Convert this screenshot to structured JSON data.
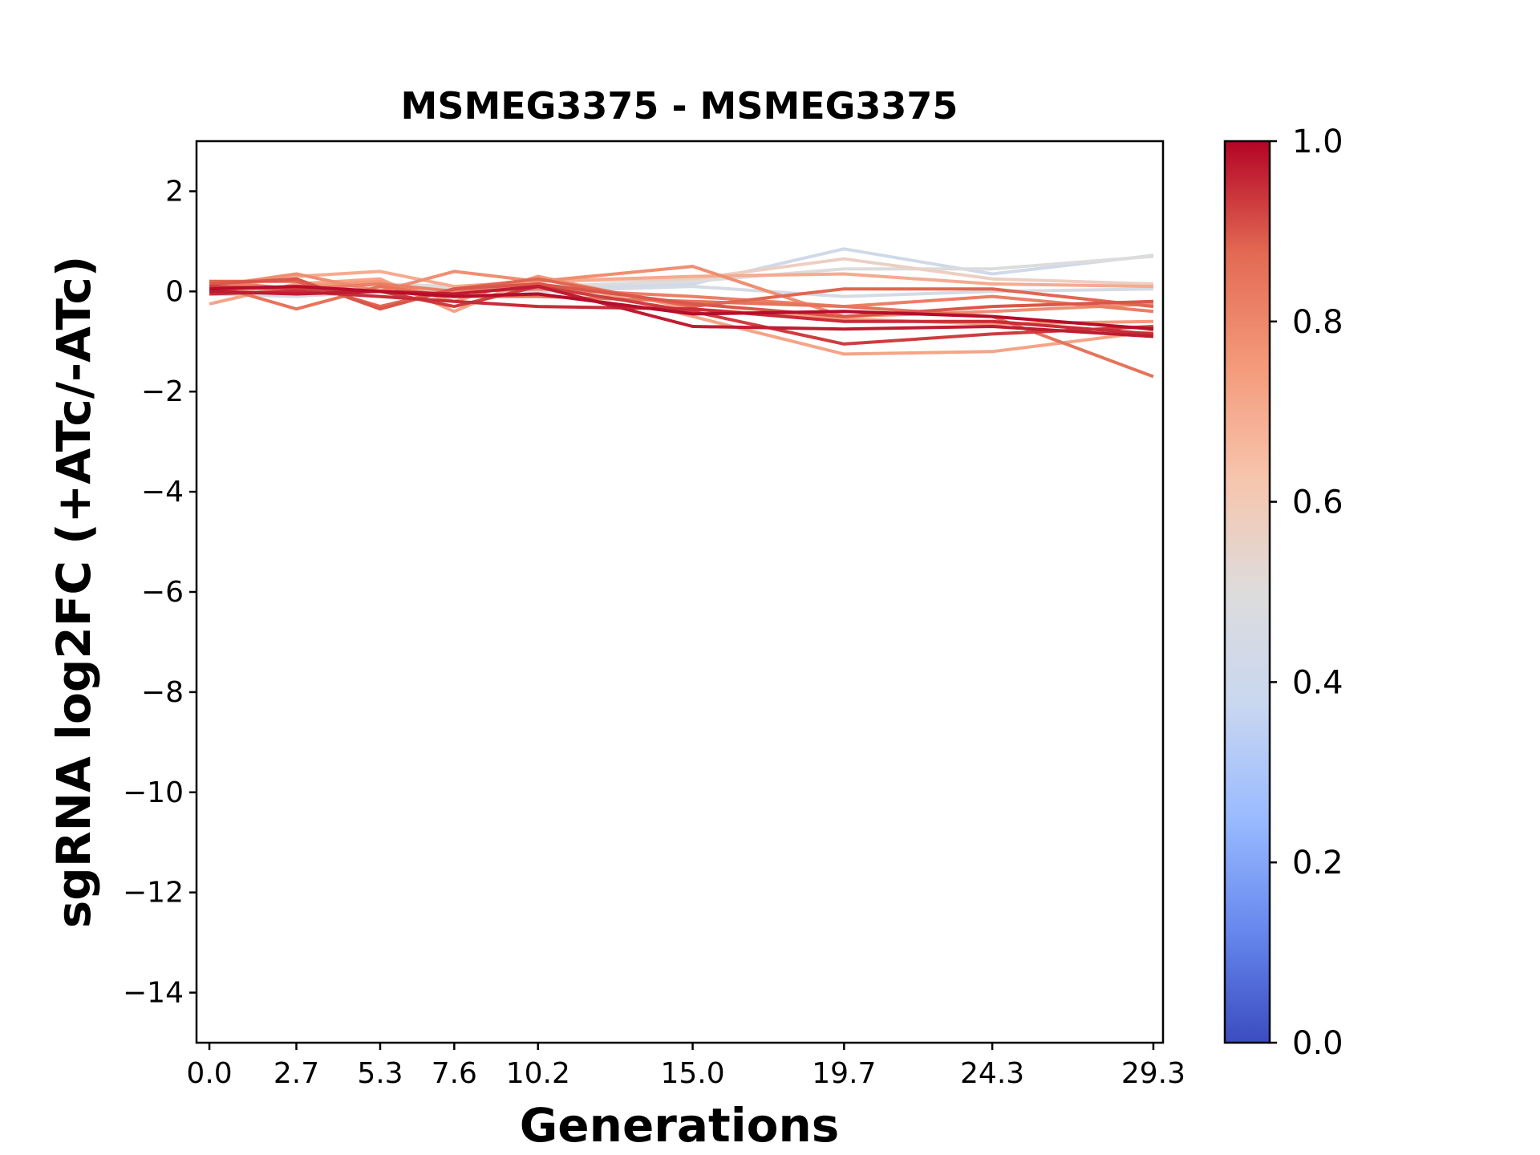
{
  "chart_data": {
    "type": "line",
    "title": "MSMEG3375 - MSMEG3375",
    "xlabel": "Generations",
    "ylabel": "sgRNA log2FC (+ATc/-ATc)",
    "x": [
      0.0,
      2.7,
      5.3,
      7.6,
      10.2,
      15.0,
      19.7,
      24.3,
      29.3
    ],
    "x_tick_labels": [
      "0.0",
      "2.7",
      "5.3",
      "7.6",
      "10.2",
      "15.0",
      "19.7",
      "24.3",
      "29.3"
    ],
    "xlim": [
      -0.4,
      29.6
    ],
    "ylim": [
      -15,
      3
    ],
    "y_ticks": [
      2,
      0,
      -2,
      -4,
      -6,
      -8,
      -10,
      -12,
      -14
    ],
    "y_tick_labels": [
      "2",
      "0",
      "−2",
      "−4",
      "−6",
      "−8",
      "−10",
      "−12",
      "−14"
    ],
    "colorbar": {
      "range": [
        0.0,
        1.0
      ],
      "ticks": [
        0.0,
        0.2,
        0.4,
        0.6,
        0.8,
        1.0
      ],
      "tick_labels": [
        "0.0",
        "0.2",
        "0.4",
        "0.6",
        "0.8",
        "1.0"
      ],
      "colormap": "coolwarm",
      "stops": [
        "#3b4cc0",
        "#6788ee",
        "#9abbff",
        "#c9d7f0",
        "#dddcdc",
        "#f7c5ad",
        "#f49a7b",
        "#e36a53",
        "#b40426"
      ]
    },
    "series": [
      {
        "c": 0.42,
        "values": [
          0.05,
          0.0,
          0.1,
          0.05,
          0.05,
          0.15,
          0.85,
          0.35,
          0.72
        ]
      },
      {
        "c": 0.5,
        "values": [
          0.1,
          0.05,
          0.15,
          0.1,
          0.1,
          0.2,
          0.45,
          0.45,
          0.7
        ]
      },
      {
        "c": 0.57,
        "values": [
          0.0,
          0.1,
          0.05,
          0.0,
          0.2,
          0.25,
          0.65,
          0.25,
          0.15
        ]
      },
      {
        "c": 0.45,
        "values": [
          -0.05,
          -0.1,
          0.0,
          0.05,
          0.0,
          0.1,
          -0.1,
          0.0,
          0.05
        ]
      },
      {
        "c": 0.7,
        "values": [
          0.05,
          0.3,
          0.4,
          0.1,
          0.2,
          0.3,
          0.35,
          0.15,
          0.1
        ]
      },
      {
        "c": 0.78,
        "values": [
          0.1,
          0.35,
          0.0,
          0.4,
          0.2,
          0.5,
          -0.5,
          -0.4,
          -0.25
        ]
      },
      {
        "c": 0.72,
        "values": [
          -0.25,
          0.15,
          0.25,
          -0.4,
          0.3,
          -0.5,
          -1.25,
          -1.2,
          -0.8
        ]
      },
      {
        "c": 0.85,
        "values": [
          0.15,
          -0.35,
          0.1,
          -0.1,
          -0.1,
          -0.2,
          -0.3,
          -0.5,
          -1.7
        ]
      },
      {
        "c": 0.88,
        "values": [
          0.2,
          0.2,
          -0.3,
          0.05,
          0.25,
          -0.3,
          0.05,
          0.05,
          -0.3
        ]
      },
      {
        "c": 0.75,
        "values": [
          0.0,
          0.1,
          0.2,
          -0.2,
          0.3,
          -0.35,
          -0.55,
          -0.65,
          -0.6
        ]
      },
      {
        "c": 0.93,
        "values": [
          0.1,
          0.05,
          0.0,
          -0.3,
          0.1,
          -0.4,
          -1.05,
          -0.85,
          -0.7
        ]
      },
      {
        "c": 0.97,
        "values": [
          0.0,
          -0.05,
          0.0,
          -0.05,
          0.1,
          -0.7,
          -0.75,
          -0.7,
          -0.9
        ]
      },
      {
        "c": 0.9,
        "values": [
          0.15,
          0.25,
          -0.35,
          0.05,
          0.15,
          -0.25,
          -0.5,
          -0.3,
          -0.2
        ]
      },
      {
        "c": 0.95,
        "values": [
          -0.05,
          0.0,
          -0.1,
          -0.2,
          -0.3,
          -0.35,
          -0.6,
          -0.6,
          -0.85
        ]
      },
      {
        "c": 0.82,
        "values": [
          0.2,
          0.05,
          0.15,
          0.0,
          0.05,
          -0.1,
          -0.3,
          -0.1,
          -0.4
        ]
      },
      {
        "c": 0.99,
        "values": [
          0.05,
          0.1,
          0.0,
          -0.1,
          -0.05,
          -0.45,
          -0.4,
          -0.5,
          -0.75
        ]
      }
    ]
  }
}
